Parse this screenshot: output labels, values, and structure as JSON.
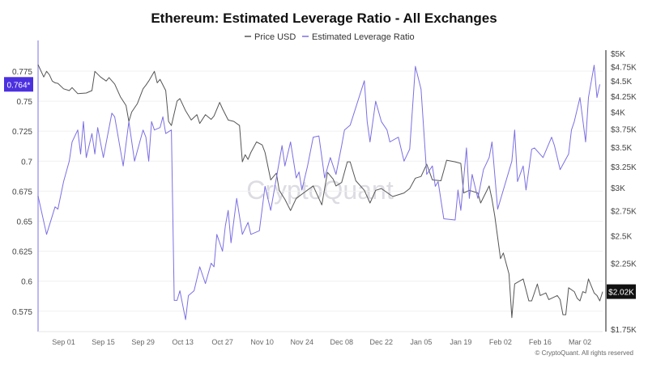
{
  "chart_data": {
    "type": "line",
    "title": "Ethereum: Estimated Leverage Ratio - All Exchanges",
    "legend": {
      "placement": "top-center",
      "entries": [
        "Price USD",
        "Estimated Leverage Ratio"
      ]
    },
    "grid": true,
    "watermark": "CryptoQuant",
    "footer": "© CryptoQuant. All rights reserved",
    "x_axis": {
      "range": [
        "2024-08-23",
        "2025-03-10"
      ],
      "ticks": [
        {
          "date": "2024-09-01",
          "label": "Sep 01"
        },
        {
          "date": "2024-09-15",
          "label": "Sep 15"
        },
        {
          "date": "2024-09-29",
          "label": "Sep 29"
        },
        {
          "date": "2024-10-13",
          "label": "Oct 13"
        },
        {
          "date": "2024-10-27",
          "label": "Oct 27"
        },
        {
          "date": "2024-11-10",
          "label": "Nov 10"
        },
        {
          "date": "2024-11-24",
          "label": "Nov 24"
        },
        {
          "date": "2024-12-08",
          "label": "Dec 08"
        },
        {
          "date": "2024-12-22",
          "label": "Dec 22"
        },
        {
          "date": "2025-01-05",
          "label": "Jan 05"
        },
        {
          "date": "2025-01-19",
          "label": "Jan 19"
        },
        {
          "date": "2025-02-02",
          "label": "Feb 02"
        },
        {
          "date": "2025-02-16",
          "label": "Feb 16"
        },
        {
          "date": "2025-03-02",
          "label": "Mar 02"
        }
      ]
    },
    "y_left": {
      "range": [
        0.558,
        0.7925
      ],
      "ticks": [
        {
          "value": 0.575,
          "label": "0.575"
        },
        {
          "value": 0.6,
          "label": "0.6"
        },
        {
          "value": 0.625,
          "label": "0.625"
        },
        {
          "value": 0.65,
          "label": "0.65"
        },
        {
          "value": 0.675,
          "label": "0.675"
        },
        {
          "value": 0.7,
          "label": "0.7"
        },
        {
          "value": 0.725,
          "label": "0.725"
        },
        {
          "value": 0.75,
          "label": "0.75"
        },
        {
          "value": 0.775,
          "label": "0.775"
        }
      ],
      "current_label": "0.764*",
      "current_value": 0.764
    },
    "y_right": {
      "scale": "log",
      "range": [
        1735,
        5062
      ],
      "ticks": [
        {
          "value": 1750,
          "label": "$1.75K"
        },
        {
          "value": 2250,
          "label": "$2.25K"
        },
        {
          "value": 2500,
          "label": "$2.5K"
        },
        {
          "value": 2750,
          "label": "$2.75K"
        },
        {
          "value": 3000,
          "label": "$3K"
        },
        {
          "value": 3250,
          "label": "$3.25K"
        },
        {
          "value": 3500,
          "label": "$3.5K"
        },
        {
          "value": 3750,
          "label": "$3.75K"
        },
        {
          "value": 4000,
          "label": "$4K"
        },
        {
          "value": 4250,
          "label": "$4.25K"
        },
        {
          "value": 4500,
          "label": "$4.5K"
        },
        {
          "value": 4750,
          "label": "$4.75K"
        },
        {
          "value": 5000,
          "label": "$5K"
        }
      ],
      "current_label": "$2.02K",
      "current_value": 2020
    },
    "series": [
      {
        "name": "Price USD",
        "axis": "right",
        "color": "#555555",
        "points": [
          [
            "2024-08-23",
            4790
          ],
          [
            "2024-08-25",
            4570
          ],
          [
            "2024-08-26",
            4670
          ],
          [
            "2024-08-27",
            4610
          ],
          [
            "2024-08-28",
            4500
          ],
          [
            "2024-08-29",
            4470
          ],
          [
            "2024-08-30",
            4460
          ],
          [
            "2024-09-01",
            4370
          ],
          [
            "2024-09-03",
            4340
          ],
          [
            "2024-09-04",
            4390
          ],
          [
            "2024-09-06",
            4290
          ],
          [
            "2024-09-09",
            4300
          ],
          [
            "2024-09-11",
            4340
          ],
          [
            "2024-09-12",
            4670
          ],
          [
            "2024-09-14",
            4570
          ],
          [
            "2024-09-16",
            4500
          ],
          [
            "2024-09-17",
            4560
          ],
          [
            "2024-09-19",
            4450
          ],
          [
            "2024-09-21",
            4240
          ],
          [
            "2024-09-23",
            4100
          ],
          [
            "2024-09-24",
            3860
          ],
          [
            "2024-09-25",
            4000
          ],
          [
            "2024-09-27",
            4130
          ],
          [
            "2024-09-29",
            4370
          ],
          [
            "2024-09-30",
            4430
          ],
          [
            "2024-10-01",
            4500
          ],
          [
            "2024-10-03",
            4670
          ],
          [
            "2024-10-04",
            4470
          ],
          [
            "2024-10-05",
            4530
          ],
          [
            "2024-10-07",
            4340
          ],
          [
            "2024-10-08",
            3860
          ],
          [
            "2024-10-09",
            3800
          ],
          [
            "2024-10-11",
            4170
          ],
          [
            "2024-10-12",
            4210
          ],
          [
            "2024-10-14",
            4020
          ],
          [
            "2024-10-16",
            3880
          ],
          [
            "2024-10-18",
            3960
          ],
          [
            "2024-10-19",
            3830
          ],
          [
            "2024-10-21",
            3960
          ],
          [
            "2024-10-23",
            3890
          ],
          [
            "2024-10-24",
            3940
          ],
          [
            "2024-10-26",
            4150
          ],
          [
            "2024-10-27",
            4050
          ],
          [
            "2024-10-29",
            3880
          ],
          [
            "2024-10-31",
            3860
          ],
          [
            "2024-11-02",
            3800
          ],
          [
            "2024-11-03",
            3310
          ],
          [
            "2024-11-04",
            3400
          ],
          [
            "2024-11-05",
            3340
          ],
          [
            "2024-11-06",
            3430
          ],
          [
            "2024-11-08",
            3570
          ],
          [
            "2024-11-10",
            3530
          ],
          [
            "2024-11-11",
            3430
          ],
          [
            "2024-11-13",
            3090
          ],
          [
            "2024-11-15",
            3170
          ],
          [
            "2024-11-16",
            2970
          ],
          [
            "2024-11-18",
            2870
          ],
          [
            "2024-11-20",
            2750
          ],
          [
            "2024-11-22",
            2880
          ],
          [
            "2024-11-25",
            2950
          ],
          [
            "2024-11-28",
            3020
          ],
          [
            "2024-12-01",
            2810
          ],
          [
            "2024-12-03",
            3180
          ],
          [
            "2024-12-05",
            3100
          ],
          [
            "2024-12-06",
            3020
          ],
          [
            "2024-12-08",
            3060
          ],
          [
            "2024-12-10",
            3310
          ],
          [
            "2024-12-11",
            3310
          ],
          [
            "2024-12-13",
            3080
          ],
          [
            "2024-12-16",
            2970
          ],
          [
            "2024-12-18",
            2830
          ],
          [
            "2024-12-20",
            2970
          ],
          [
            "2024-12-22",
            2990
          ],
          [
            "2024-12-26",
            2900
          ],
          [
            "2024-12-30",
            2940
          ],
          [
            "2025-01-01",
            2990
          ],
          [
            "2025-01-03",
            3110
          ],
          [
            "2025-01-05",
            3130
          ],
          [
            "2025-01-07",
            3280
          ],
          [
            "2025-01-09",
            3090
          ],
          [
            "2025-01-12",
            3080
          ],
          [
            "2025-01-14",
            3330
          ],
          [
            "2025-01-17",
            3310
          ],
          [
            "2025-01-19",
            3290
          ],
          [
            "2025-01-20",
            2940
          ],
          [
            "2025-01-22",
            2970
          ],
          [
            "2025-01-25",
            2940
          ],
          [
            "2025-01-26",
            2830
          ],
          [
            "2025-01-29",
            3020
          ],
          [
            "2025-01-30",
            2870
          ],
          [
            "2025-01-31",
            2690
          ],
          [
            "2025-02-02",
            2290
          ],
          [
            "2025-02-03",
            2340
          ],
          [
            "2025-02-05",
            2160
          ],
          [
            "2025-02-06",
            1830
          ],
          [
            "2025-02-07",
            2080
          ],
          [
            "2025-02-10",
            2120
          ],
          [
            "2025-02-12",
            1950
          ],
          [
            "2025-02-13",
            1950
          ],
          [
            "2025-02-15",
            2080
          ],
          [
            "2025-02-16",
            1990
          ],
          [
            "2025-02-18",
            2010
          ],
          [
            "2025-02-19",
            1960
          ],
          [
            "2025-02-22",
            1990
          ],
          [
            "2025-02-23",
            1960
          ],
          [
            "2025-02-24",
            1850
          ],
          [
            "2025-02-25",
            1850
          ],
          [
            "2025-02-26",
            2050
          ],
          [
            "2025-02-28",
            2020
          ],
          [
            "2025-03-01",
            1970
          ],
          [
            "2025-03-02",
            1950
          ],
          [
            "2025-03-03",
            2020
          ],
          [
            "2025-03-04",
            2010
          ],
          [
            "2025-03-05",
            2120
          ],
          [
            "2025-03-07",
            2010
          ],
          [
            "2025-03-08",
            1990
          ],
          [
            "2025-03-09",
            1950
          ],
          [
            "2025-03-10",
            2020
          ]
        ]
      },
      {
        "name": "Estimated Leverage Ratio",
        "axis": "left",
        "color": "#7b6fe3",
        "points": [
          [
            "2024-08-23",
            0.671
          ],
          [
            "2024-08-26",
            0.639
          ],
          [
            "2024-08-29",
            0.662
          ],
          [
            "2024-08-30",
            0.66
          ],
          [
            "2024-09-01",
            0.683
          ],
          [
            "2024-09-03",
            0.7
          ],
          [
            "2024-09-04",
            0.716
          ],
          [
            "2024-09-06",
            0.726
          ],
          [
            "2024-09-07",
            0.706
          ],
          [
            "2024-09-08",
            0.733
          ],
          [
            "2024-09-09",
            0.703
          ],
          [
            "2024-09-11",
            0.723
          ],
          [
            "2024-09-12",
            0.706
          ],
          [
            "2024-09-13",
            0.728
          ],
          [
            "2024-09-15",
            0.703
          ],
          [
            "2024-09-18",
            0.74
          ],
          [
            "2024-09-19",
            0.737
          ],
          [
            "2024-09-22",
            0.696
          ],
          [
            "2024-09-24",
            0.733
          ],
          [
            "2024-09-26",
            0.7
          ],
          [
            "2024-09-29",
            0.726
          ],
          [
            "2024-09-30",
            0.72
          ],
          [
            "2024-10-01",
            0.7
          ],
          [
            "2024-10-02",
            0.733
          ],
          [
            "2024-10-03",
            0.726
          ],
          [
            "2024-10-05",
            0.728
          ],
          [
            "2024-10-06",
            0.737
          ],
          [
            "2024-10-07",
            0.723
          ],
          [
            "2024-10-09",
            0.726
          ],
          [
            "2024-10-10",
            0.584
          ],
          [
            "2024-10-11",
            0.584
          ],
          [
            "2024-10-12",
            0.592
          ],
          [
            "2024-10-14",
            0.568
          ],
          [
            "2024-10-15",
            0.588
          ],
          [
            "2024-10-17",
            0.592
          ],
          [
            "2024-10-19",
            0.612
          ],
          [
            "2024-10-21",
            0.598
          ],
          [
            "2024-10-23",
            0.615
          ],
          [
            "2024-10-24",
            0.612
          ],
          [
            "2024-10-25",
            0.639
          ],
          [
            "2024-10-27",
            0.625
          ],
          [
            "2024-10-28",
            0.646
          ],
          [
            "2024-10-29",
            0.659
          ],
          [
            "2024-10-30",
            0.632
          ],
          [
            "2024-11-01",
            0.669
          ],
          [
            "2024-11-03",
            0.639
          ],
          [
            "2024-11-05",
            0.649
          ],
          [
            "2024-11-06",
            0.639
          ],
          [
            "2024-11-09",
            0.642
          ],
          [
            "2024-11-11",
            0.679
          ],
          [
            "2024-11-13",
            0.659
          ],
          [
            "2024-11-17",
            0.713
          ],
          [
            "2024-11-18",
            0.696
          ],
          [
            "2024-11-20",
            0.716
          ],
          [
            "2024-11-22",
            0.686
          ],
          [
            "2024-11-23",
            0.691
          ],
          [
            "2024-11-24",
            0.676
          ],
          [
            "2024-11-26",
            0.696
          ],
          [
            "2024-11-28",
            0.72
          ],
          [
            "2024-11-30",
            0.721
          ],
          [
            "2024-12-02",
            0.686
          ],
          [
            "2024-12-04",
            0.703
          ],
          [
            "2024-12-06",
            0.689
          ],
          [
            "2024-12-08",
            0.713
          ],
          [
            "2024-12-09",
            0.726
          ],
          [
            "2024-12-11",
            0.73
          ],
          [
            "2024-12-16",
            0.767
          ],
          [
            "2024-12-17",
            0.733
          ],
          [
            "2024-12-18",
            0.716
          ],
          [
            "2024-12-20",
            0.75
          ],
          [
            "2024-12-22",
            0.733
          ],
          [
            "2024-12-24",
            0.726
          ],
          [
            "2024-12-25",
            0.716
          ],
          [
            "2024-12-28",
            0.72
          ],
          [
            "2024-12-30",
            0.7
          ],
          [
            "2025-01-01",
            0.71
          ],
          [
            "2025-01-03",
            0.779
          ],
          [
            "2025-01-05",
            0.76
          ],
          [
            "2025-01-07",
            0.689
          ],
          [
            "2025-01-09",
            0.696
          ],
          [
            "2025-01-10",
            0.679
          ],
          [
            "2025-01-11",
            0.683
          ],
          [
            "2025-01-13",
            0.652
          ],
          [
            "2025-01-17",
            0.651
          ],
          [
            "2025-01-18",
            0.676
          ],
          [
            "2025-01-19",
            0.659
          ],
          [
            "2025-01-21",
            0.711
          ],
          [
            "2025-01-22",
            0.669
          ],
          [
            "2025-01-23",
            0.689
          ],
          [
            "2025-01-25",
            0.669
          ],
          [
            "2025-01-27",
            0.693
          ],
          [
            "2025-01-29",
            0.703
          ],
          [
            "2025-01-30",
            0.716
          ],
          [
            "2025-02-01",
            0.66
          ],
          [
            "2025-02-03",
            0.676
          ],
          [
            "2025-02-06",
            0.7
          ],
          [
            "2025-02-07",
            0.726
          ],
          [
            "2025-02-08",
            0.683
          ],
          [
            "2025-02-10",
            0.696
          ],
          [
            "2025-02-11",
            0.676
          ],
          [
            "2025-02-13",
            0.71
          ],
          [
            "2025-02-14",
            0.711
          ],
          [
            "2025-02-17",
            0.703
          ],
          [
            "2025-02-20",
            0.72
          ],
          [
            "2025-02-21",
            0.713
          ],
          [
            "2025-02-23",
            0.693
          ],
          [
            "2025-02-26",
            0.706
          ],
          [
            "2025-02-27",
            0.726
          ],
          [
            "2025-02-28",
            0.733
          ],
          [
            "2025-03-02",
            0.753
          ],
          [
            "2025-03-04",
            0.716
          ],
          [
            "2025-03-05",
            0.753
          ],
          [
            "2025-03-07",
            0.78
          ],
          [
            "2025-03-08",
            0.753
          ],
          [
            "2025-03-09",
            0.764
          ]
        ]
      }
    ],
    "colors": {
      "leverage_flag": "#4b30e0",
      "price_flag": "#111111",
      "left_axis": "#a99ff0",
      "right_axis": "#666666"
    }
  }
}
